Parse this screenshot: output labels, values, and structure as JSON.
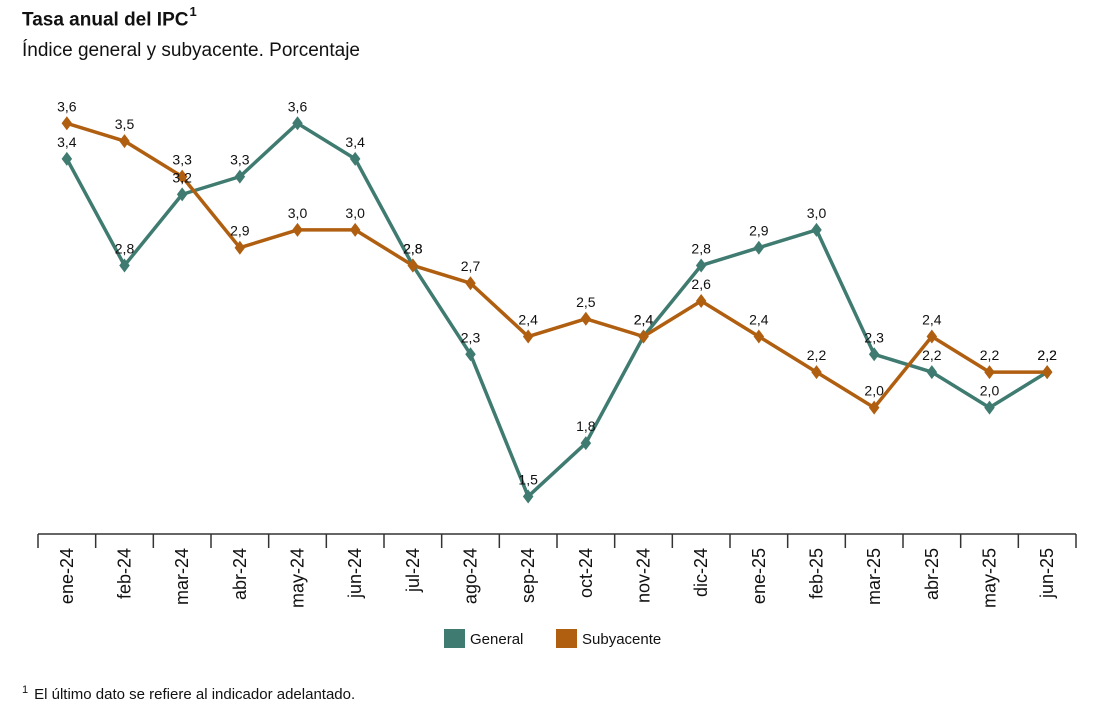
{
  "header": {
    "title": "Tasa anual del IPC",
    "title_sup": "1",
    "subtitle": "Índice general y subyacente. Porcentaje"
  },
  "footnote": {
    "sup": "1",
    "text": "El último dato se refiere al indicador adelantado."
  },
  "chart_data": {
    "type": "line",
    "title": "Tasa anual del IPC",
    "subtitle": "Índice general y subyacente. Porcentaje",
    "categories": [
      "ene-24",
      "feb-24",
      "mar-24",
      "abr-24",
      "may-24",
      "jun-24",
      "jul-24",
      "ago-24",
      "sep-24",
      "oct-24",
      "nov-24",
      "dic-24",
      "ene-25",
      "feb-25",
      "mar-25",
      "abr-25",
      "may-25",
      "jun-25"
    ],
    "series": [
      {
        "name": "General",
        "color": "#3f7b70",
        "values": [
          3.4,
          2.8,
          3.2,
          3.3,
          3.6,
          3.4,
          2.8,
          2.3,
          1.5,
          1.8,
          2.4,
          2.8,
          2.9,
          3.0,
          2.3,
          2.2,
          2.0,
          2.2
        ]
      },
      {
        "name": "Subyacente",
        "color": "#b05f10",
        "values": [
          3.6,
          3.5,
          3.3,
          2.9,
          3.0,
          3.0,
          2.8,
          2.7,
          2.4,
          2.5,
          2.4,
          2.6,
          2.4,
          2.2,
          2.0,
          2.4,
          2.2,
          2.2
        ]
      }
    ],
    "data_labels": true,
    "decimal_separator": ",",
    "ylim": [
      1.3,
      3.9
    ],
    "y_axis_visible": false,
    "grid": false,
    "legend_position": "bottom"
  }
}
